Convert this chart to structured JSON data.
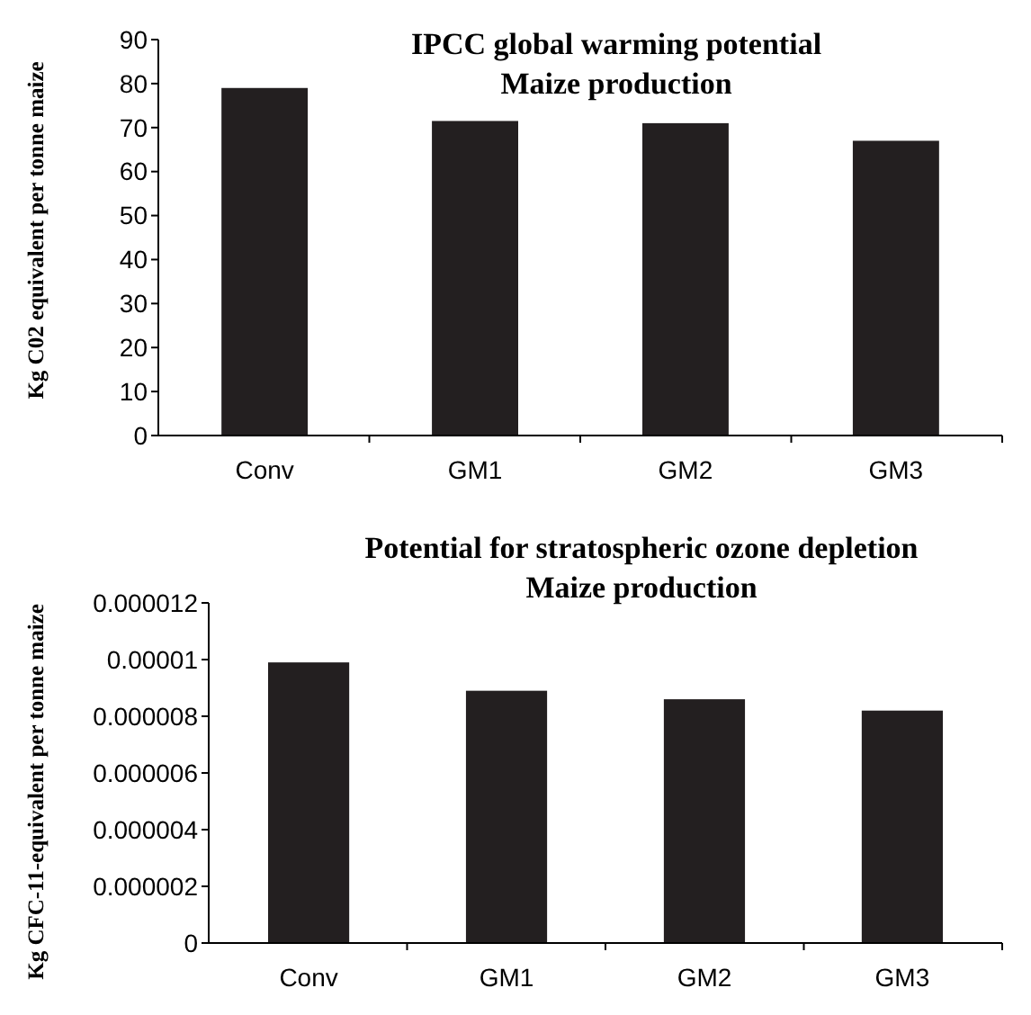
{
  "chart_data": [
    {
      "type": "bar",
      "title": "IPCC global warming potential\nMaize production",
      "ylabel": "Kg C02 equivalent per tonne maize",
      "categories": [
        "Conv",
        "GM1",
        "GM2",
        "GM3"
      ],
      "values": [
        79,
        71.5,
        71,
        67
      ],
      "color": "#231f20",
      "ylim": [
        0,
        90
      ],
      "yticks": [
        0,
        10,
        20,
        30,
        40,
        50,
        60,
        70,
        80,
        90
      ],
      "grid": false
    },
    {
      "type": "bar",
      "title": "Potential for stratospheric ozone depletion\nMaize production",
      "ylabel": "Kg CFC-11-equivalent per tonne maize",
      "categories": [
        "Conv",
        "GM1",
        "GM2",
        "GM3"
      ],
      "values": [
        9.9e-06,
        8.9e-06,
        8.6e-06,
        8.2e-06
      ],
      "color": "#231f20",
      "ylim": [
        0,
        1.2e-05
      ],
      "yticks": [
        {
          "value": 0,
          "label": "0"
        },
        {
          "value": 2e-06,
          "label": "0.000002"
        },
        {
          "value": 4e-06,
          "label": "0.000004"
        },
        {
          "value": 6e-06,
          "label": "0.000006"
        },
        {
          "value": 8e-06,
          "label": "0.000008"
        },
        {
          "value": 1e-05,
          "label": "0.00001"
        },
        {
          "value": 1.2e-05,
          "label": "0.000012"
        }
      ],
      "grid": false
    }
  ]
}
